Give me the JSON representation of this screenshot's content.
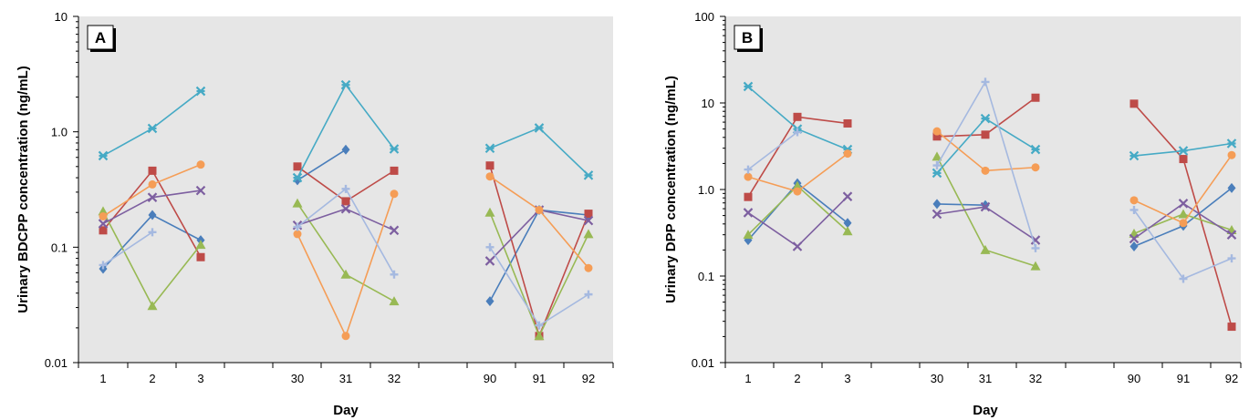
{
  "chart_data": [
    {
      "type": "line",
      "panel": "A",
      "ylabel": "Urinary BDCPP concentration (ng/mL)",
      "xlabel": "Day",
      "y_scale": "log",
      "ylim": [
        0.01,
        10
      ],
      "y_ticks": [
        "0.01",
        "0.1",
        "1.0",
        "10"
      ],
      "colors": {
        "blue": "#4a7ebb",
        "red": "#be4b48",
        "green": "#98b954",
        "purple": "#7d5fa0",
        "teal": "#46aac5",
        "orange": "#f59d56",
        "lightblue": "#a5b9e0"
      },
      "background": "#e6e6e6",
      "groups": [
        {
          "days": [
            "1",
            "2",
            "3"
          ]
        },
        {
          "days": [
            "30",
            "31",
            "32"
          ]
        },
        {
          "days": [
            "90",
            "91",
            "92"
          ]
        }
      ],
      "series": [
        {
          "marker": "diamond",
          "color": "#4a7ebb",
          "values": [
            [
              0.065,
              0.19,
              0.115
            ],
            [
              0.38,
              0.7,
              null
            ],
            [
              0.034,
              0.21,
              0.19
            ]
          ]
        },
        {
          "marker": "square",
          "color": "#be4b48",
          "values": [
            [
              0.14,
              0.46,
              0.082
            ],
            [
              0.5,
              0.25,
              0.46
            ],
            [
              0.51,
              0.017,
              0.195
            ]
          ]
        },
        {
          "marker": "triangle",
          "color": "#98b954",
          "values": [
            [
              0.205,
              0.031,
              0.105
            ],
            [
              0.24,
              0.058,
              0.034
            ],
            [
              0.2,
              0.017,
              0.13
            ]
          ]
        },
        {
          "marker": "x",
          "color": "#7d5fa0",
          "values": [
            [
              0.16,
              0.27,
              0.31
            ],
            [
              0.155,
              0.215,
              0.14
            ],
            [
              0.076,
              0.21,
              0.17
            ]
          ]
        },
        {
          "marker": "star",
          "color": "#46aac5",
          "values": [
            [
              0.62,
              1.07,
              2.25
            ],
            [
              0.4,
              2.55,
              0.71
            ],
            [
              0.72,
              1.08,
              0.42
            ]
          ]
        },
        {
          "marker": "circle",
          "color": "#f59d56",
          "values": [
            [
              0.185,
              0.35,
              0.52
            ],
            [
              0.13,
              0.017,
              0.29
            ],
            [
              0.41,
              0.21,
              0.066
            ]
          ]
        },
        {
          "marker": "plus",
          "color": "#a5b9e0",
          "values": [
            [
              0.07,
              0.135,
              null
            ],
            [
              0.15,
              0.32,
              0.058
            ],
            [
              0.1,
              0.021,
              0.039
            ]
          ]
        }
      ]
    },
    {
      "type": "line",
      "panel": "B",
      "ylabel": "Urinary DPP concentration (ng/mL)",
      "xlabel": "Day",
      "y_scale": "log",
      "ylim": [
        0.01,
        100
      ],
      "y_ticks": [
        "0.01",
        "0.1",
        "1.0",
        "10",
        "100"
      ],
      "colors": {
        "blue": "#4a7ebb",
        "red": "#be4b48",
        "green": "#98b954",
        "purple": "#7d5fa0",
        "teal": "#46aac5",
        "orange": "#f59d56",
        "lightblue": "#a5b9e0"
      },
      "background": "#e6e6e6",
      "groups": [
        {
          "days": [
            "1",
            "2",
            "3"
          ]
        },
        {
          "days": [
            "30",
            "31",
            "32"
          ]
        },
        {
          "days": [
            "90",
            "91",
            "92"
          ]
        }
      ],
      "series": [
        {
          "marker": "diamond",
          "color": "#4a7ebb",
          "values": [
            [
              0.26,
              1.18,
              0.41
            ],
            [
              0.68,
              0.66,
              null
            ],
            [
              0.22,
              0.38,
              1.04
            ]
          ]
        },
        {
          "marker": "square",
          "color": "#be4b48",
          "values": [
            [
              0.82,
              6.9,
              5.8
            ],
            [
              4.1,
              4.3,
              11.5
            ],
            [
              9.8,
              2.25,
              0.026
            ]
          ]
        },
        {
          "marker": "triangle",
          "color": "#98b954",
          "values": [
            [
              0.3,
              1.1,
              0.33
            ],
            [
              2.4,
              0.2,
              0.13
            ],
            [
              0.31,
              0.52,
              0.34
            ]
          ]
        },
        {
          "marker": "x",
          "color": "#7d5fa0",
          "values": [
            [
              0.54,
              0.22,
              0.83
            ],
            [
              0.52,
              0.63,
              0.26
            ],
            [
              0.27,
              0.69,
              0.3
            ]
          ]
        },
        {
          "marker": "star",
          "color": "#46aac5",
          "values": [
            [
              15.5,
              5.0,
              2.9
            ],
            [
              1.55,
              6.6,
              2.9
            ],
            [
              2.45,
              2.8,
              3.4
            ]
          ]
        },
        {
          "marker": "circle",
          "color": "#f59d56",
          "values": [
            [
              1.4,
              0.95,
              2.6
            ],
            [
              4.7,
              1.65,
              1.8
            ],
            [
              0.75,
              0.41,
              2.5
            ]
          ]
        },
        {
          "marker": "plus",
          "color": "#a5b9e0",
          "values": [
            [
              1.7,
              4.6,
              null
            ],
            [
              1.9,
              17.5,
              0.21
            ],
            [
              0.58,
              0.093,
              0.16
            ]
          ]
        }
      ]
    }
  ]
}
